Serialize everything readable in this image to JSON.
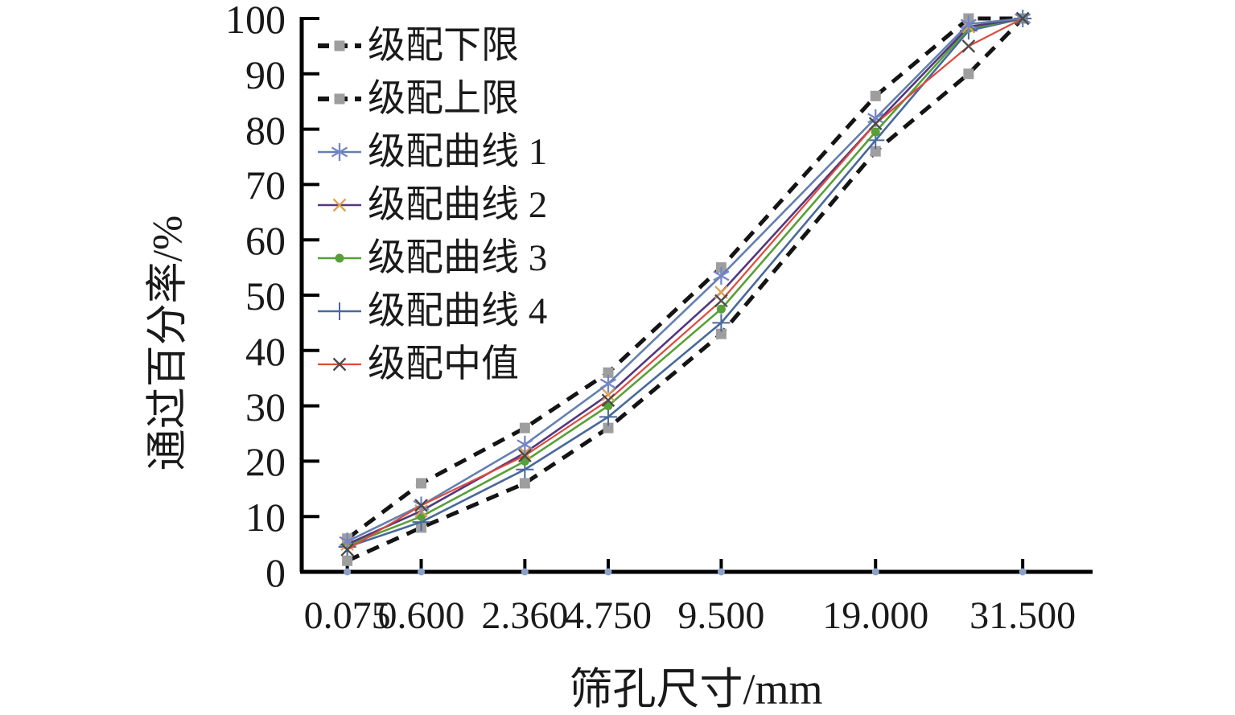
{
  "figure": {
    "background": "#ffffff",
    "y_axis_title": "通过百分率/%",
    "x_axis_title": "筛孔尺寸/mm",
    "y_tick_labels": [
      "0",
      "10",
      "20",
      "30",
      "40",
      "50",
      "60",
      "70",
      "80",
      "90",
      "100"
    ],
    "x_tick_labels": [
      "0.075",
      "0.600",
      "2.360",
      "4.750",
      "9.500",
      "19.000",
      "31.500"
    ],
    "axis_color": "#000000"
  },
  "chart_data": {
    "type": "line",
    "title": "",
    "xlabel": "筛孔尺寸/mm",
    "ylabel": "通过百分率/%",
    "x_scale": "sieve-size-power-0.45",
    "ylim": [
      0,
      100
    ],
    "y_tick_step": 10,
    "grid": "off",
    "legend_position": "upper-left-inside",
    "x_tick_values": [
      0.075,
      0.6,
      2.36,
      4.75,
      9.5,
      19,
      31.5
    ],
    "categories": [
      0.075,
      0.6,
      2.36,
      4.75,
      9.5,
      19,
      26.5,
      31.5
    ],
    "series": [
      {
        "key": "lower-limit",
        "name": "级配下限",
        "line_style": "dashed",
        "color": "#141414",
        "line_width": 5,
        "marker": "square",
        "marker_color": "#9e9e9e",
        "values": [
          2,
          8,
          16,
          26,
          43,
          76,
          90,
          100
        ]
      },
      {
        "key": "upper-limit",
        "name": "级配上限",
        "line_style": "dashed",
        "color": "#141414",
        "line_width": 5,
        "marker": "square",
        "marker_color": "#9e9e9e",
        "values": [
          6,
          16,
          26,
          36,
          55,
          86,
          100,
          100
        ]
      },
      {
        "key": "curve-1",
        "name": "级配曲线 1",
        "line_style": "solid",
        "color": "#6480b0",
        "line_width": 2.6,
        "marker": "asterisk",
        "marker_color": "#7486c8",
        "values": [
          5.5,
          12,
          23,
          34,
          53.5,
          82,
          99,
          100
        ]
      },
      {
        "key": "curve-2",
        "name": "级配曲线 2",
        "line_style": "solid",
        "color": "#54377f",
        "line_width": 2.6,
        "marker": "x",
        "marker_color": "#dfa050",
        "values": [
          5,
          11,
          21.5,
          32,
          50.5,
          81,
          98.5,
          100
        ]
      },
      {
        "key": "curve-3",
        "name": "级配曲线 3",
        "line_style": "solid",
        "color": "#57a037",
        "line_width": 2.6,
        "marker": "dot",
        "marker_color": "#57a037",
        "values": [
          4.8,
          10,
          20,
          30,
          47.5,
          79.5,
          98.2,
          100
        ]
      },
      {
        "key": "curve-4",
        "name": "级配曲线 4",
        "line_style": "solid",
        "color": "#49699c",
        "line_width": 2.6,
        "marker": "plus",
        "marker_color": "#49699c",
        "values": [
          4.5,
          9,
          18.5,
          28,
          45,
          78,
          97.8,
          100
        ]
      },
      {
        "key": "median",
        "name": "级配中值",
        "line_style": "solid",
        "color": "#dd4b3b",
        "line_width": 2.2,
        "marker": "x-dark",
        "marker_color": "#4a4a4a",
        "values": [
          4,
          12,
          21,
          31,
          49,
          81,
          95,
          100
        ]
      }
    ],
    "draw_order": [
      0,
      1,
      5,
      4,
      3,
      2,
      6
    ],
    "baseline_dot_color": "#8aa2c8"
  }
}
